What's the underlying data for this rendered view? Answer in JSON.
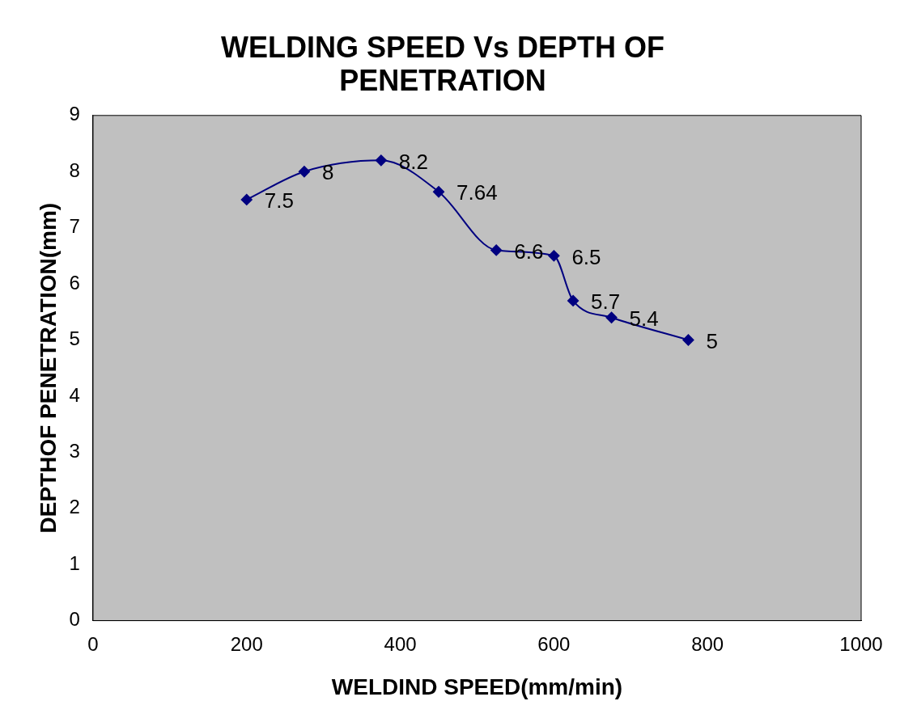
{
  "chart_data": {
    "type": "line",
    "title": "WELDING SPEED Vs DEPTH OF PENETRATION",
    "xlabel": "WELDIND SPEED(mm/min)",
    "ylabel": "DEPTHOF PENETRATION(mm)",
    "x": [
      200,
      275,
      375,
      450,
      525,
      600,
      625,
      675,
      775
    ],
    "series": [
      {
        "color": "#000080",
        "values": [
          7.5,
          8,
          8.2,
          7.64,
          6.6,
          6.5,
          5.7,
          5.4,
          5
        ]
      }
    ],
    "xlim": [
      0,
      1000
    ],
    "xticks": [
      0,
      200,
      400,
      600,
      800,
      1000
    ],
    "ylim": [
      0,
      9
    ],
    "yticks": [
      0,
      1,
      2,
      3,
      4,
      5,
      6,
      7,
      8,
      9
    ],
    "data_labels": true,
    "marker": "diamond",
    "line_style": "solid",
    "grid": false,
    "legend": false
  }
}
